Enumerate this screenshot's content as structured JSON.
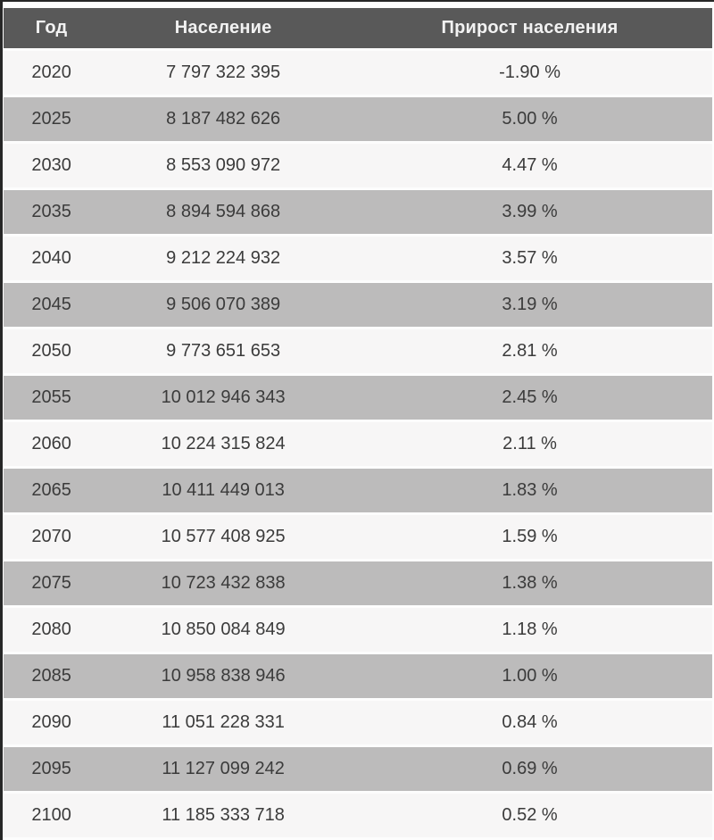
{
  "colors": {
    "header_bg": "#595959",
    "header_text": "#f2f2f2",
    "row_light": "#f7f6f6",
    "row_dark": "#bcbbbb",
    "cell_text": "#3b3b3b",
    "frame_border": "#262626"
  },
  "chart_data": {
    "type": "table",
    "title": "",
    "columns": [
      "Год",
      "Население",
      "Прирост населения"
    ],
    "rows": [
      [
        "2020",
        "7 797 322 395",
        "-1.90 %"
      ],
      [
        "2025",
        "8 187 482 626",
        "5.00 %"
      ],
      [
        "2030",
        "8 553 090 972",
        "4.47 %"
      ],
      [
        "2035",
        "8 894 594 868",
        "3.99 %"
      ],
      [
        "2040",
        "9 212 224 932",
        "3.57 %"
      ],
      [
        "2045",
        "9 506 070 389",
        "3.19 %"
      ],
      [
        "2050",
        "9 773 651 653",
        "2.81 %"
      ],
      [
        "2055",
        "10 012 946 343",
        "2.45 %"
      ],
      [
        "2060",
        "10 224 315 824",
        "2.11 %"
      ],
      [
        "2065",
        "10 411 449 013",
        "1.83 %"
      ],
      [
        "2070",
        "10 577 408 925",
        "1.59 %"
      ],
      [
        "2075",
        "10 723 432 838",
        "1.38 %"
      ],
      [
        "2080",
        "10 850 084 849",
        "1.18 %"
      ],
      [
        "2085",
        "10 958 838 946",
        "1.00 %"
      ],
      [
        "2090",
        "11 051 228 331",
        "0.84 %"
      ],
      [
        "2095",
        "11 127 099 242",
        "0.69 %"
      ],
      [
        "2100",
        "11 185 333 718",
        "0.52 %"
      ]
    ]
  }
}
